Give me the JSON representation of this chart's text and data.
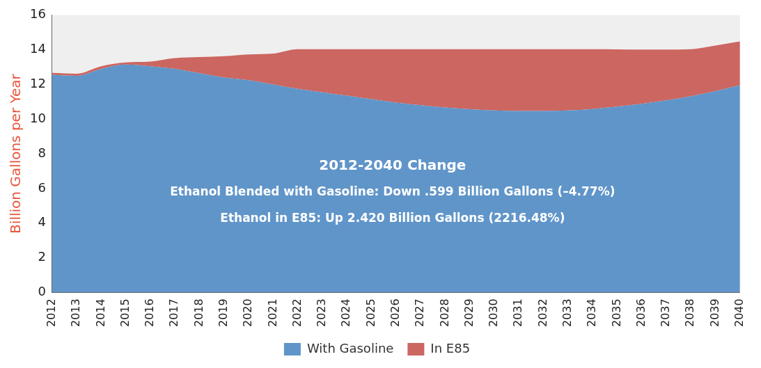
{
  "chart_data": {
    "type": "area",
    "stacked": true,
    "categories": [
      "2012",
      "2013",
      "2014",
      "2015",
      "2016",
      "2017",
      "2018",
      "2019",
      "2020",
      "2021",
      "2022",
      "2023",
      "2024",
      "2025",
      "2026",
      "2027",
      "2028",
      "2029",
      "2030",
      "2031",
      "2032",
      "2033",
      "2034",
      "2035",
      "2036",
      "2037",
      "2038",
      "2039",
      "2040"
    ],
    "series": [
      {
        "name": "With Gasoline",
        "color": "#6095c9",
        "values": [
          12.56,
          12.5,
          12.9,
          13.15,
          13.05,
          12.9,
          12.65,
          12.4,
          12.25,
          12.0,
          11.75,
          11.55,
          11.35,
          11.15,
          10.95,
          10.8,
          10.67,
          10.57,
          10.5,
          10.47,
          10.47,
          10.5,
          10.58,
          10.72,
          10.88,
          11.08,
          11.32,
          11.62,
          11.96
        ]
      },
      {
        "name": "In E85",
        "color": "#cc6660",
        "values": [
          0.11,
          0.12,
          0.15,
          0.12,
          0.27,
          0.62,
          0.93,
          1.23,
          1.48,
          1.78,
          2.28,
          2.48,
          2.68,
          2.88,
          3.08,
          3.23,
          3.36,
          3.46,
          3.53,
          3.56,
          3.56,
          3.53,
          3.45,
          3.3,
          3.13,
          2.93,
          2.71,
          2.63,
          2.53
        ]
      }
    ],
    "ylabel": "Billion Gallons per Year",
    "ylim": [
      0,
      16
    ],
    "yticks": [
      0,
      2,
      4,
      6,
      8,
      10,
      12,
      14,
      16
    ],
    "annotations": [
      "2012-2040 Change",
      "Ethanol Blended with Gasoline: Down .599 Billion Gallons (–4.77%)",
      "Ethanol in E85: Up 2.420 Billion Gallons (2216.48%)"
    ],
    "legend": "bottom",
    "grid": false
  }
}
